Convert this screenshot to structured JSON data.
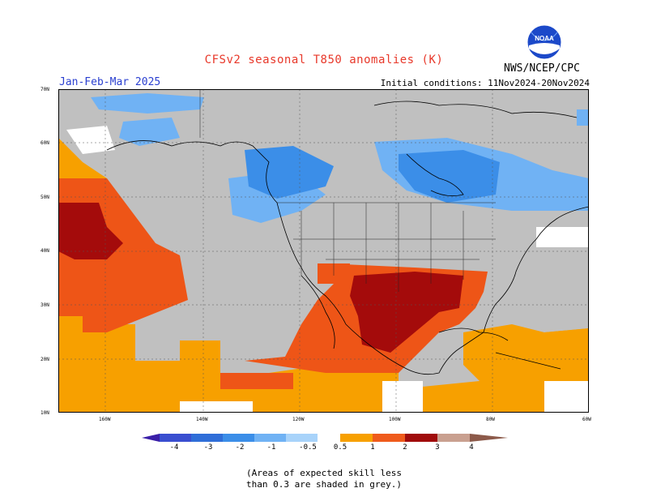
{
  "title": "CFSv2 seasonal T850 anomalies (K)",
  "agency": "NWS/NCEP/CPC",
  "logo_text": "NOAA",
  "season": "Jan-Feb-Mar 2025",
  "initial_conditions": "Initial conditions: 11Nov2024-20Nov2024",
  "lat_labels": [
    "70N",
    "60N",
    "50N",
    "40N",
    "30N",
    "20N",
    "10N"
  ],
  "lon_labels": [
    "160W",
    "140W",
    "120W",
    "100W",
    "80W",
    "60W"
  ],
  "colorbar": {
    "labels": [
      "-4",
      "-3",
      "-2",
      "-1",
      "-0.5",
      "0.5",
      "1",
      "2",
      "3",
      "4"
    ],
    "colors": [
      "#3a1fa8",
      "#3a4fd0",
      "#2f6ed8",
      "#3b8ee8",
      "#70b2f4",
      "#ffffff",
      "#f7a000",
      "#ef5b1c",
      "#e32d0e",
      "#a00c0c",
      "#c9a090",
      "#8c5a4a"
    ]
  },
  "note": [
    "(Areas of expected skill less",
    "than 0.3 are shaded in grey.)"
  ],
  "map_colors": {
    "ocean_grey": "#c0c0c0",
    "orange": "#f7a000",
    "red_orange": "#ee5517",
    "red": "#e3310f",
    "dark_red": "#a40b0b",
    "light_blue": "#70b2f4",
    "blue": "#3b8ee8"
  }
}
